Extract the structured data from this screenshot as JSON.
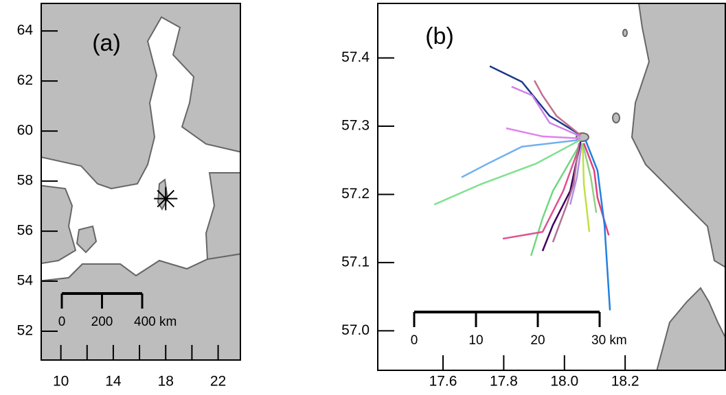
{
  "chart_data": [
    {
      "type": "map",
      "label": "(a)",
      "xlim": [
        8.5,
        23.7
      ],
      "ylim": [
        50.85,
        65.1
      ],
      "xticks": [
        10,
        14,
        18,
        22
      ],
      "xminorticks": [
        12,
        16,
        20
      ],
      "yticks": [
        52,
        54,
        56,
        58,
        60,
        62,
        64
      ],
      "site": {
        "x": 18,
        "y": 57.3
      },
      "scale_bar": [
        "0",
        "200",
        "400 km"
      ]
    },
    {
      "type": "map",
      "label": "(b)",
      "xlim": [
        17.385,
        18.53
      ],
      "ylim": [
        56.942,
        57.48
      ],
      "xticks": [
        17.6,
        17.8,
        {
          "value": 18,
          "label": "18.0"
        },
        18.2
      ],
      "yticks": [
        {
          "value": 57,
          "label": "57.0"
        },
        57.1,
        57.2,
        57.3,
        57.4
      ],
      "scale_bar": [
        "0",
        "10",
        "20",
        "30 km"
      ],
      "series": [
        {
          "color": "#1a3a8a",
          "x": [
            18.053,
            17.951,
            17.86,
            17.754
          ],
          "y": [
            57.287,
            57.315,
            57.365,
            57.388
          ]
        },
        {
          "color": "#c07090",
          "x": [
            18.053,
            17.974,
            17.928,
            17.901
          ],
          "y": [
            57.287,
            57.315,
            57.345,
            57.367
          ]
        },
        {
          "color": "#d080e8",
          "x": [
            18.053,
            17.951,
            17.894,
            17.826
          ],
          "y": [
            57.285,
            57.305,
            57.345,
            57.358
          ]
        },
        {
          "color": "#e080f0",
          "x": [
            18.053,
            17.928,
            17.808
          ],
          "y": [
            57.282,
            57.285,
            57.297
          ]
        },
        {
          "color": "#70b0f0",
          "x": [
            18.053,
            17.86,
            17.747,
            17.661
          ],
          "y": [
            57.28,
            57.27,
            57.245,
            57.225
          ]
        },
        {
          "color": "#80e090",
          "x": [
            18.053,
            17.906,
            17.725,
            17.571
          ],
          "y": [
            57.28,
            57.245,
            57.215,
            57.185
          ]
        },
        {
          "color": "#70d880",
          "x": [
            18.053,
            17.962,
            17.928,
            17.89
          ],
          "y": [
            57.275,
            57.205,
            57.165,
            57.11
          ]
        },
        {
          "color": "#e05090",
          "x": [
            18.053,
            17.996,
            17.928,
            17.797
          ],
          "y": [
            57.275,
            57.205,
            57.145,
            57.135
          ]
        },
        {
          "color": "#400060",
          "x": [
            18.053,
            18.019,
            17.962,
            17.928
          ],
          "y": [
            57.277,
            57.205,
            57.155,
            57.117
          ]
        },
        {
          "color": "#b07090",
          "x": [
            18.048,
            18.03,
            18.008,
            17.962
          ],
          "y": [
            57.275,
            57.215,
            57.185,
            57.13
          ]
        },
        {
          "color": "#b090e0",
          "x": [
            18.057,
            18.041,
            18.019
          ],
          "y": [
            57.275,
            57.225,
            57.185
          ]
        },
        {
          "color": "#c0e040",
          "x": [
            18.06,
            18.064,
            18.082
          ],
          "y": [
            57.275,
            57.215,
            57.145
          ]
        },
        {
          "color": "#90d080",
          "x": [
            18.06,
            18.087,
            18.105
          ],
          "y": [
            57.275,
            57.225,
            57.173
          ]
        },
        {
          "color": "#e04080",
          "x": [
            18.064,
            18.098,
            18.109,
            18.146
          ],
          "y": [
            57.275,
            57.235,
            57.195,
            57.14
          ]
        },
        {
          "color": "#2080e0",
          "x": [
            18.069,
            18.109,
            18.132,
            18.15
          ],
          "y": [
            57.28,
            57.235,
            57.155,
            57.03
          ]
        }
      ]
    }
  ]
}
